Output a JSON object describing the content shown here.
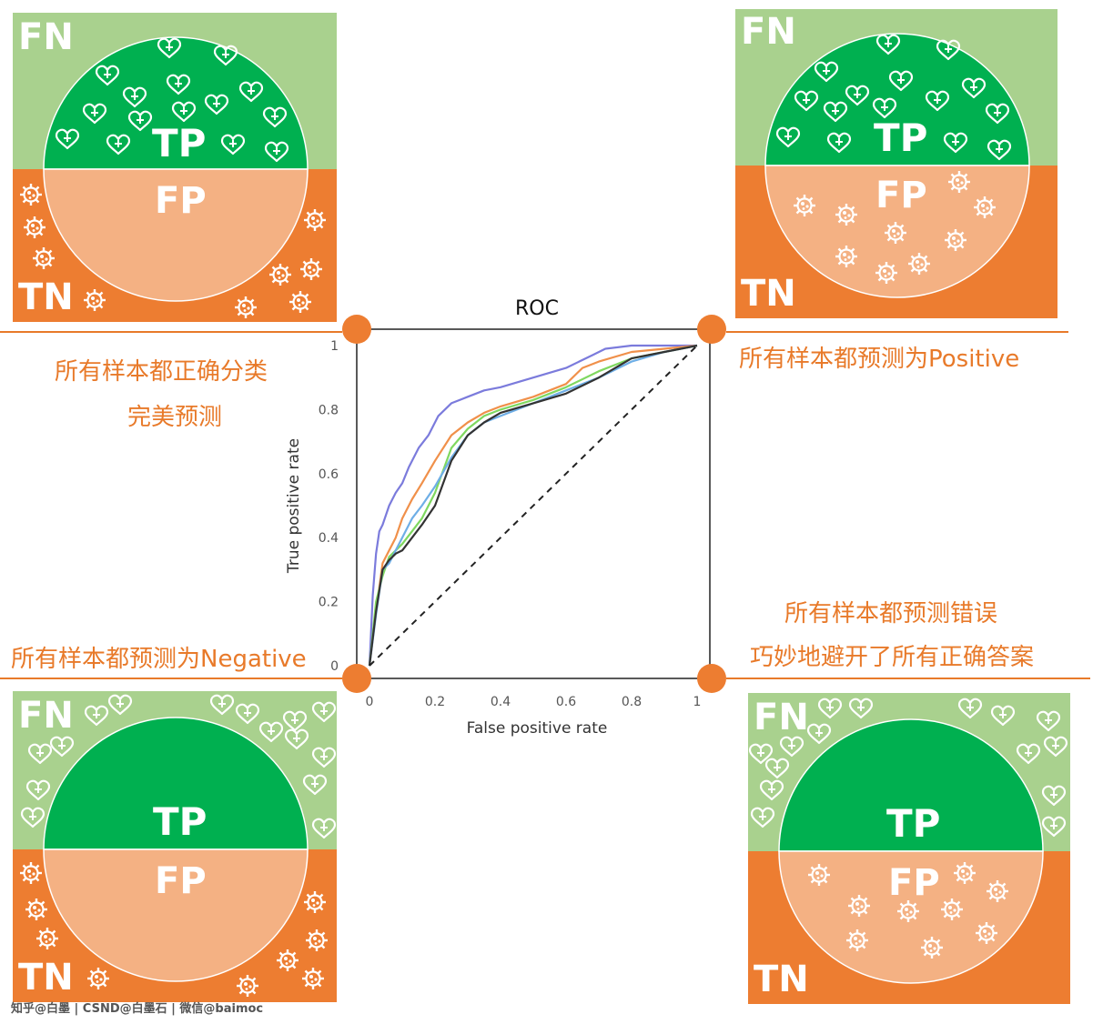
{
  "labels": {
    "fn": "FN",
    "tp": "TP",
    "fp": "FP",
    "tn": "TN"
  },
  "captions": {
    "top_left_1": "所有样本都正确分类",
    "top_left_2": "完美预测",
    "top_right": "所有样本都预测为Positive",
    "bottom_left": "所有样本都预测为Negative",
    "bottom_right_1": "所有样本都预测错误",
    "bottom_right_2": "巧妙地避开了所有正确答案"
  },
  "footer": "知乎@白墨 | CSND@白墨石 | 微信@baimoc",
  "icons": {
    "positive": "heart-plus-icon",
    "negative": "virus-icon"
  },
  "colors": {
    "fn_light_green": "#a9d18e",
    "tp_green": "#00b050",
    "fp_light_orange": "#f4b183",
    "tn_orange": "#ed7d31",
    "caption_orange": "#e87a2a"
  },
  "chart_data": {
    "type": "line",
    "title": "ROC",
    "xlabel": "False positive rate",
    "ylabel": "True positive rate",
    "xlim": [
      0,
      1
    ],
    "ylim": [
      0,
      1
    ],
    "xticks": [
      "0",
      "0.2",
      "0.4",
      "0.6",
      "0.8",
      "1"
    ],
    "yticks": [
      "0",
      "0.2",
      "0.4",
      "0.6",
      "0.8",
      "1"
    ],
    "grid": false,
    "series": [
      {
        "color": "#7b7bdc",
        "x": [
          0,
          0.01,
          0.02,
          0.03,
          0.04,
          0.06,
          0.08,
          0.1,
          0.12,
          0.15,
          0.18,
          0.21,
          0.25,
          0.3,
          0.35,
          0.4,
          0.5,
          0.6,
          0.68,
          0.72,
          0.8,
          0.9,
          1
        ],
        "y": [
          0,
          0.22,
          0.35,
          0.42,
          0.44,
          0.5,
          0.54,
          0.57,
          0.62,
          0.68,
          0.72,
          0.78,
          0.82,
          0.84,
          0.86,
          0.87,
          0.9,
          0.93,
          0.97,
          0.99,
          1,
          1,
          1
        ]
      },
      {
        "color": "#f0904a",
        "x": [
          0,
          0.02,
          0.04,
          0.06,
          0.08,
          0.1,
          0.13,
          0.16,
          0.2,
          0.25,
          0.3,
          0.35,
          0.4,
          0.5,
          0.6,
          0.65,
          0.7,
          0.8,
          0.9,
          1
        ],
        "y": [
          0,
          0.17,
          0.32,
          0.36,
          0.4,
          0.46,
          0.52,
          0.57,
          0.64,
          0.72,
          0.76,
          0.79,
          0.81,
          0.84,
          0.88,
          0.93,
          0.95,
          0.98,
          0.99,
          1
        ]
      },
      {
        "color": "#7fd860",
        "x": [
          0,
          0.02,
          0.04,
          0.06,
          0.08,
          0.1,
          0.13,
          0.16,
          0.2,
          0.25,
          0.3,
          0.35,
          0.4,
          0.5,
          0.6,
          0.7,
          0.8,
          0.9,
          1
        ],
        "y": [
          0,
          0.2,
          0.28,
          0.34,
          0.36,
          0.38,
          0.42,
          0.46,
          0.54,
          0.68,
          0.74,
          0.78,
          0.8,
          0.83,
          0.87,
          0.92,
          0.96,
          0.98,
          1
        ]
      },
      {
        "color": "#6eaee6",
        "x": [
          0,
          0.02,
          0.04,
          0.06,
          0.08,
          0.1,
          0.13,
          0.16,
          0.2,
          0.25,
          0.3,
          0.35,
          0.4,
          0.5,
          0.6,
          0.7,
          0.8,
          0.9,
          1
        ],
        "y": [
          0,
          0.16,
          0.3,
          0.32,
          0.36,
          0.4,
          0.46,
          0.5,
          0.56,
          0.65,
          0.72,
          0.76,
          0.78,
          0.82,
          0.86,
          0.9,
          0.95,
          0.98,
          1
        ]
      },
      {
        "color": "#333333",
        "x": [
          0,
          0.02,
          0.04,
          0.06,
          0.08,
          0.1,
          0.13,
          0.16,
          0.2,
          0.25,
          0.3,
          0.35,
          0.4,
          0.5,
          0.6,
          0.7,
          0.8,
          0.9,
          1
        ],
        "y": [
          0,
          0.17,
          0.3,
          0.33,
          0.35,
          0.36,
          0.4,
          0.44,
          0.5,
          0.64,
          0.72,
          0.76,
          0.79,
          0.82,
          0.85,
          0.9,
          0.96,
          0.98,
          1
        ]
      },
      {
        "color": "#222222",
        "dashed": true,
        "x": [
          0,
          1
        ],
        "y": [
          0,
          1
        ]
      }
    ]
  }
}
